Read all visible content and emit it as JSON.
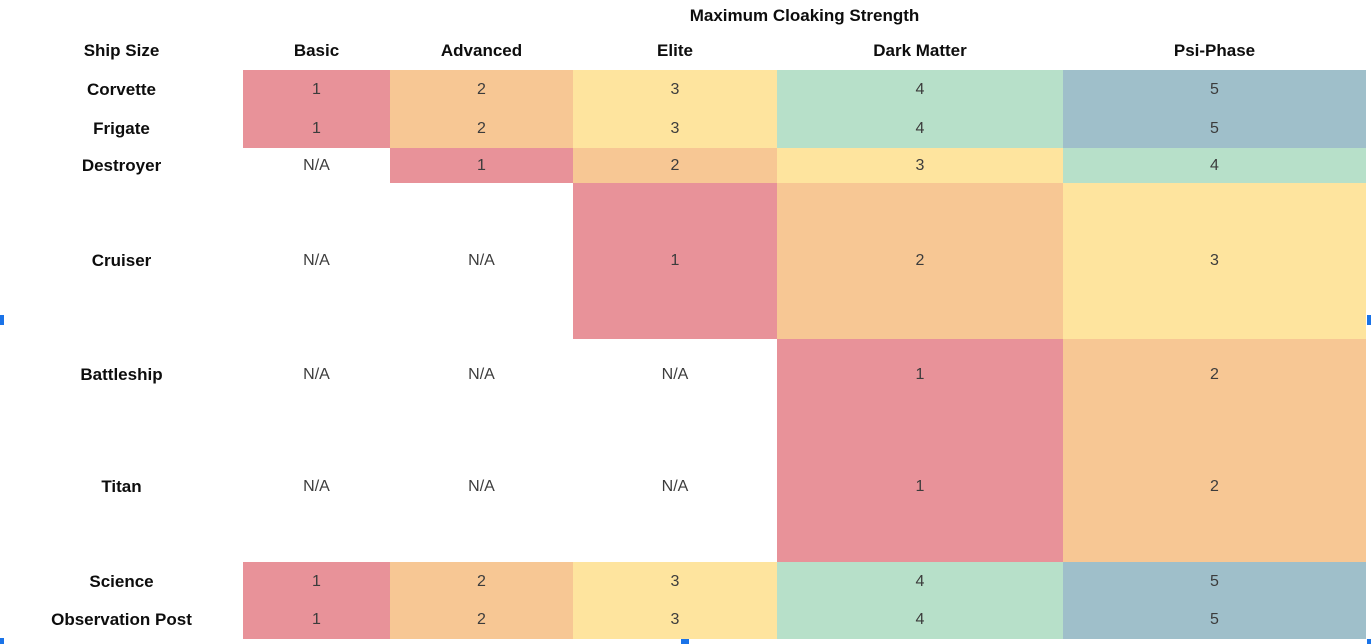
{
  "table": {
    "title": "Maximum Cloaking Strength",
    "header": {
      "ship_size": "Ship Size",
      "basic": "Basic",
      "advanced": "Advanced",
      "elite": "Elite",
      "dark_matter": "Dark Matter",
      "psi_phase": "Psi-Phase"
    },
    "rows": [
      {
        "label": "Corvette",
        "cells": [
          {
            "text": "1",
            "color": "#e89299"
          },
          {
            "text": "2",
            "color": "#f7c794"
          },
          {
            "text": "3",
            "color": "#fee49e"
          },
          {
            "text": "4",
            "color": "#b7e0c9"
          },
          {
            "text": "5",
            "color": "#9fbfca"
          }
        ]
      },
      {
        "label": "Frigate",
        "cells": [
          {
            "text": "1",
            "color": "#e89299"
          },
          {
            "text": "2",
            "color": "#f7c794"
          },
          {
            "text": "3",
            "color": "#fee49e"
          },
          {
            "text": "4",
            "color": "#b7e0c9"
          },
          {
            "text": "5",
            "color": "#9fbfca"
          }
        ]
      },
      {
        "label": "Destroyer",
        "cells": [
          {
            "text": "N/A",
            "color": "#ffffff"
          },
          {
            "text": "1",
            "color": "#e89299"
          },
          {
            "text": "2",
            "color": "#f7c794"
          },
          {
            "text": "3",
            "color": "#fee49e"
          },
          {
            "text": "4",
            "color": "#b7e0c9"
          }
        ]
      },
      {
        "label": "Cruiser",
        "cells": [
          {
            "text": "N/A",
            "color": "#ffffff"
          },
          {
            "text": "N/A",
            "color": "#ffffff"
          },
          {
            "text": "1",
            "color": "#e89299"
          },
          {
            "text": "2",
            "color": "#f7c794"
          },
          {
            "text": "3",
            "color": "#fee49e"
          }
        ]
      },
      {
        "label": "Battleship",
        "cells": [
          {
            "text": "N/A",
            "color": "#ffffff"
          },
          {
            "text": "N/A",
            "color": "#ffffff"
          },
          {
            "text": "N/A",
            "color": "#ffffff"
          },
          {
            "text": "1",
            "color": "#e89299"
          },
          {
            "text": "2",
            "color": "#f7c794"
          }
        ]
      },
      {
        "label": "Titan",
        "cells": [
          {
            "text": "N/A",
            "color": "#ffffff"
          },
          {
            "text": "N/A",
            "color": "#ffffff"
          },
          {
            "text": "N/A",
            "color": "#ffffff"
          },
          {
            "text": "1",
            "color": "#e89299"
          },
          {
            "text": "2",
            "color": "#f7c794"
          }
        ]
      },
      {
        "label": "Science",
        "cells": [
          {
            "text": "1",
            "color": "#e89299"
          },
          {
            "text": "2",
            "color": "#f7c794"
          },
          {
            "text": "3",
            "color": "#fee49e"
          },
          {
            "text": "4",
            "color": "#b7e0c9"
          },
          {
            "text": "5",
            "color": "#9fbfca"
          }
        ]
      },
      {
        "label": "Observation Post",
        "cells": [
          {
            "text": "1",
            "color": "#e89299"
          },
          {
            "text": "2",
            "color": "#f7c794"
          },
          {
            "text": "3",
            "color": "#fee49e"
          },
          {
            "text": "4",
            "color": "#b7e0c9"
          },
          {
            "text": "5",
            "color": "#9fbfca"
          }
        ]
      }
    ]
  },
  "selection": {
    "handle_color": "#1a73e8"
  },
  "chart_data": {
    "type": "heatmap",
    "title": "Maximum Cloaking Strength",
    "row_header": "Ship Size",
    "columns": [
      "Basic",
      "Advanced",
      "Elite",
      "Dark Matter",
      "Psi-Phase"
    ],
    "rows": [
      "Corvette",
      "Frigate",
      "Destroyer",
      "Cruiser",
      "Battleship",
      "Titan",
      "Science",
      "Observation Post"
    ],
    "values": [
      [
        1,
        2,
        3,
        4,
        5
      ],
      [
        1,
        2,
        3,
        4,
        5
      ],
      [
        null,
        1,
        2,
        3,
        4
      ],
      [
        null,
        null,
        1,
        2,
        3
      ],
      [
        null,
        null,
        null,
        1,
        2
      ],
      [
        null,
        null,
        null,
        1,
        2
      ],
      [
        1,
        2,
        3,
        4,
        5
      ],
      [
        1,
        2,
        3,
        4,
        5
      ]
    ],
    "na_label": "N/A",
    "value_range": [
      1,
      5
    ],
    "color_scale": {
      "1": "#e89299",
      "2": "#f7c794",
      "3": "#fee49e",
      "4": "#b7e0c9",
      "5": "#9fbfca",
      "na": "#ffffff"
    },
    "legend": "none",
    "grid": "off"
  }
}
